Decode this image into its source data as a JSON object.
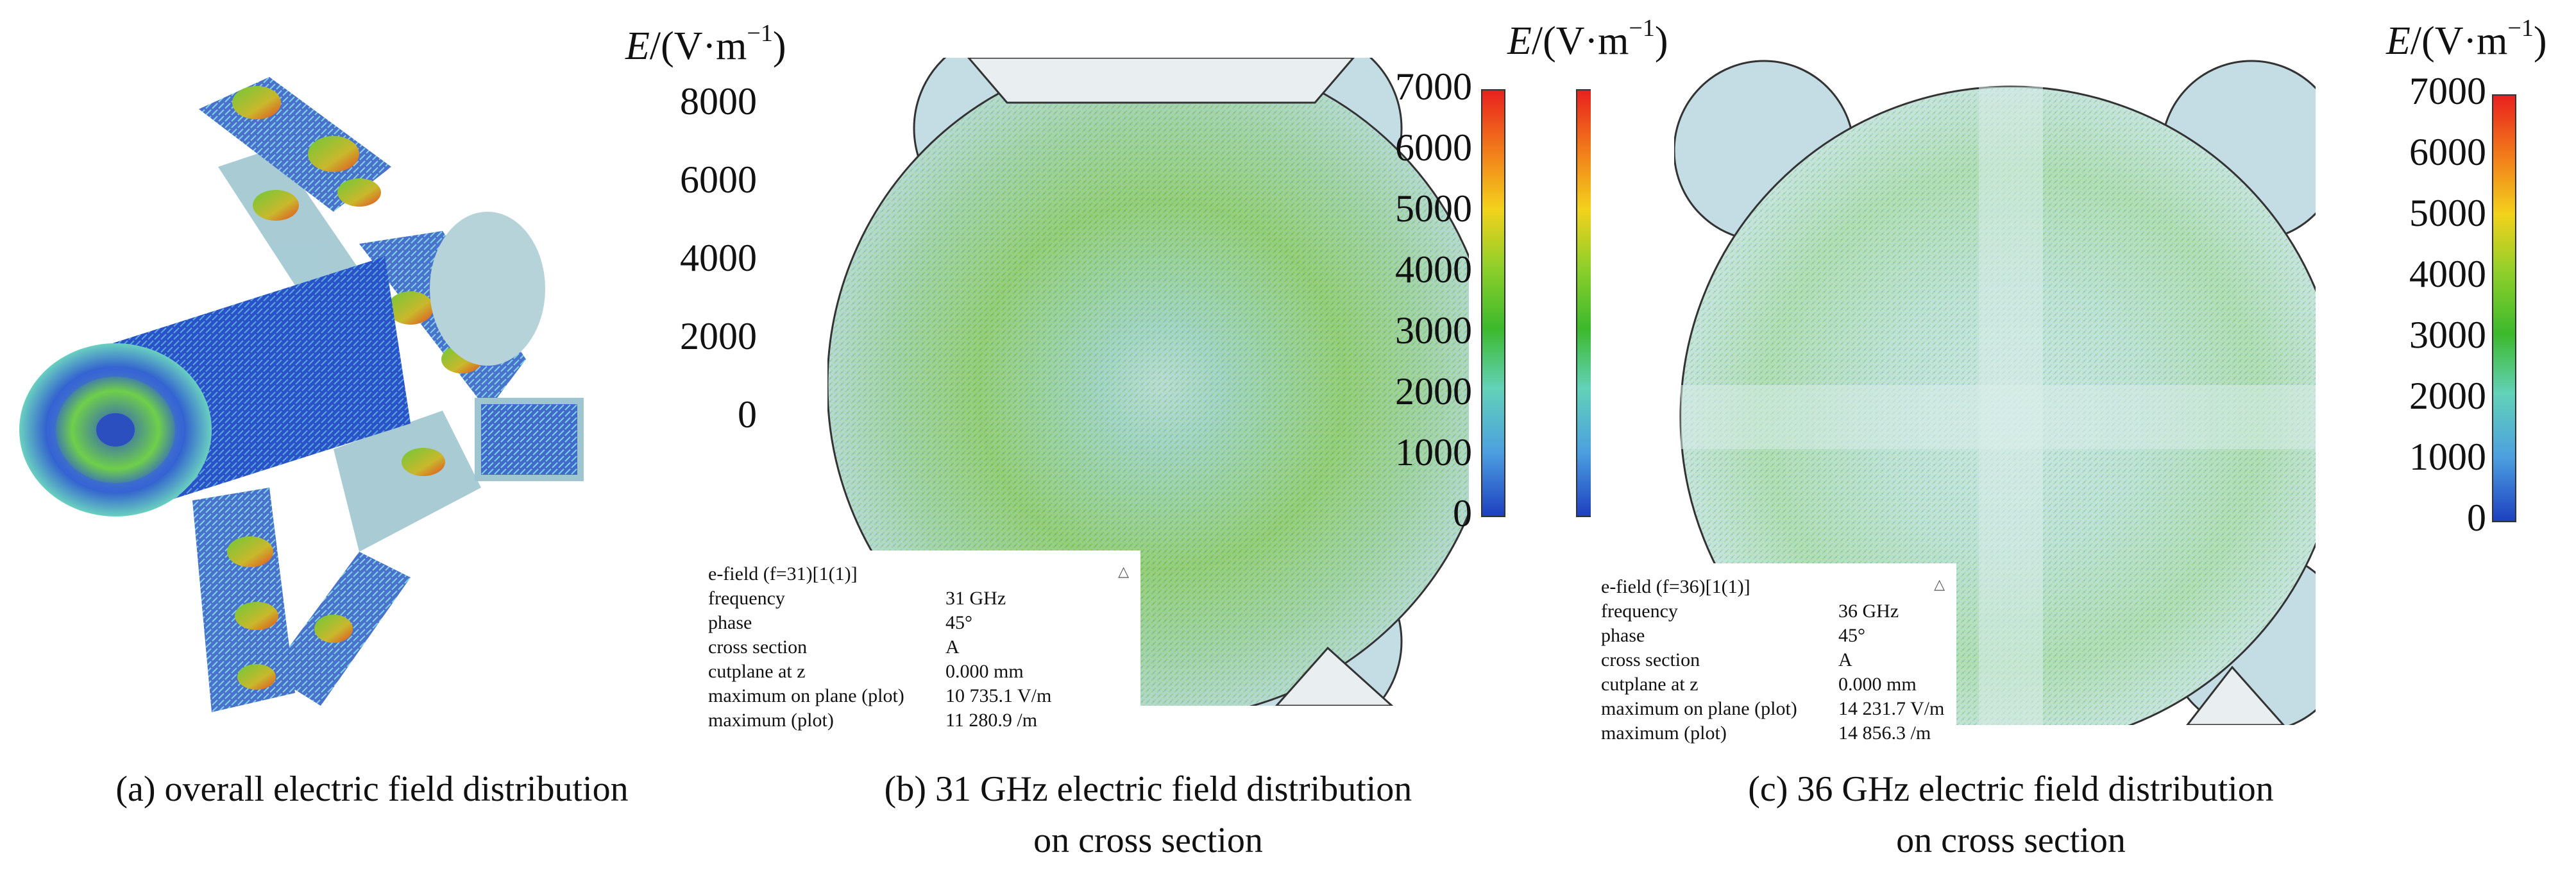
{
  "colors": {
    "field_low": "#1d3fbf",
    "field_mid": "#5fd09a",
    "field_high": "#e82a20",
    "scale_gradient": [
      "#e8201e",
      "#f27a1a",
      "#f3d21c",
      "#8ccf2a",
      "#3cb92c",
      "#62d2b8",
      "#4c9fe0",
      "#1d3fc0"
    ]
  },
  "panel_a": {
    "caption": "(a) overall electric field distribution",
    "colorbar": {
      "unit_symbol": "E",
      "unit_text": "/(V·m",
      "unit_exp": "−1",
      "unit_close": ")",
      "max": 8000,
      "ticks": [
        "8000",
        "6000",
        "4000",
        "2000",
        "0"
      ]
    }
  },
  "panel_b": {
    "caption_line1": "(b) 31 GHz electric field distribution",
    "caption_line2": "on cross section",
    "colorbar": {
      "unit_symbol": "E",
      "unit_text": "/(V·m",
      "unit_exp": "−1",
      "unit_close": ")",
      "max": 7000,
      "ticks": [
        "7000",
        "6000",
        "5000",
        "4000",
        "3000",
        "2000",
        "1000",
        "0"
      ]
    },
    "info": {
      "title": "e-field (f=31)[1(1)]",
      "rows": [
        {
          "key": "frequency",
          "value": "31 GHz"
        },
        {
          "key": "phase",
          "value": "45°"
        },
        {
          "key": "cross section",
          "value": "A"
        },
        {
          "key": "cutplane at z",
          "value": "0.000 mm"
        },
        {
          "key": "maximum on plane (plot)",
          "value": "10 735.1 V/m"
        },
        {
          "key": "maximum (plot)",
          "value": "11 280.9 /m"
        }
      ]
    }
  },
  "panel_c": {
    "caption_line1": "(c) 36 GHz electric field distribution",
    "caption_line2": "on cross section",
    "colorbar": {
      "unit_symbol": "E",
      "unit_text": "/(V·m",
      "unit_exp": "−1",
      "unit_close": ")",
      "max": 7000,
      "ticks": [
        "7000",
        "6000",
        "5000",
        "4000",
        "3000",
        "2000",
        "1000",
        "0"
      ]
    },
    "info": {
      "title": "e-field (f=36)[1(1)]",
      "rows": [
        {
          "key": "frequency",
          "value": "36 GHz"
        },
        {
          "key": "phase",
          "value": "45°"
        },
        {
          "key": "cross section",
          "value": "A"
        },
        {
          "key": "cutplane at z",
          "value": "0.000 mm"
        },
        {
          "key": "maximum on plane (plot)",
          "value": "14 231.7 V/m"
        },
        {
          "key": "maximum (plot)",
          "value": "14 856.3 /m"
        }
      ]
    }
  }
}
